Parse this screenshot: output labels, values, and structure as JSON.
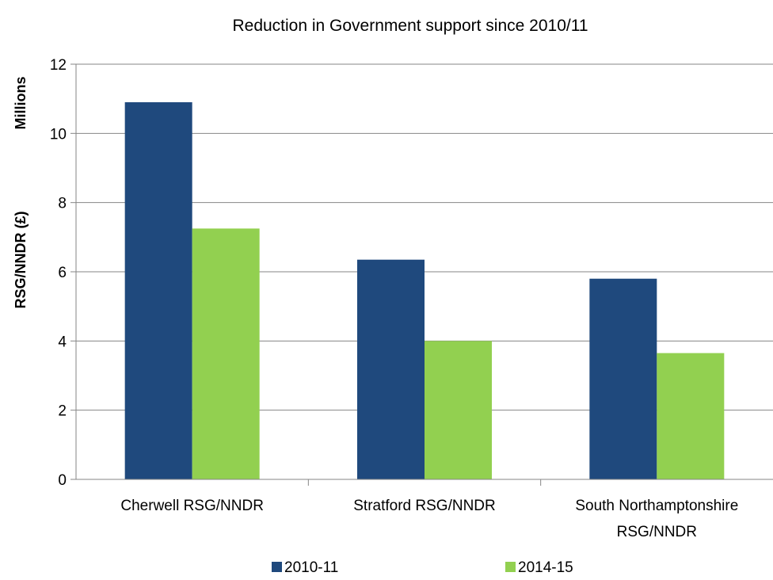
{
  "chart_data": {
    "type": "bar",
    "title": "Reduction in Government support since 2010/11",
    "ylabel": "RSG/NNDR (£)",
    "yunit": "Millions",
    "categories": [
      [
        "Cherwell RSG/NNDR"
      ],
      [
        "Stratford RSG/NNDR"
      ],
      [
        "South Northamptonshire",
        "RSG/NNDR"
      ]
    ],
    "series": [
      {
        "name": "2010-11",
        "color": "#1F497D",
        "values": [
          10.9,
          6.35,
          5.8
        ]
      },
      {
        "name": "2014-15",
        "color": "#92D050",
        "values": [
          7.25,
          4.0,
          3.65
        ]
      }
    ],
    "ylim": [
      0,
      12
    ],
    "yticks": [
      0,
      2,
      4,
      6,
      8,
      10,
      12
    ],
    "grid": true,
    "legend": "bottom"
  }
}
